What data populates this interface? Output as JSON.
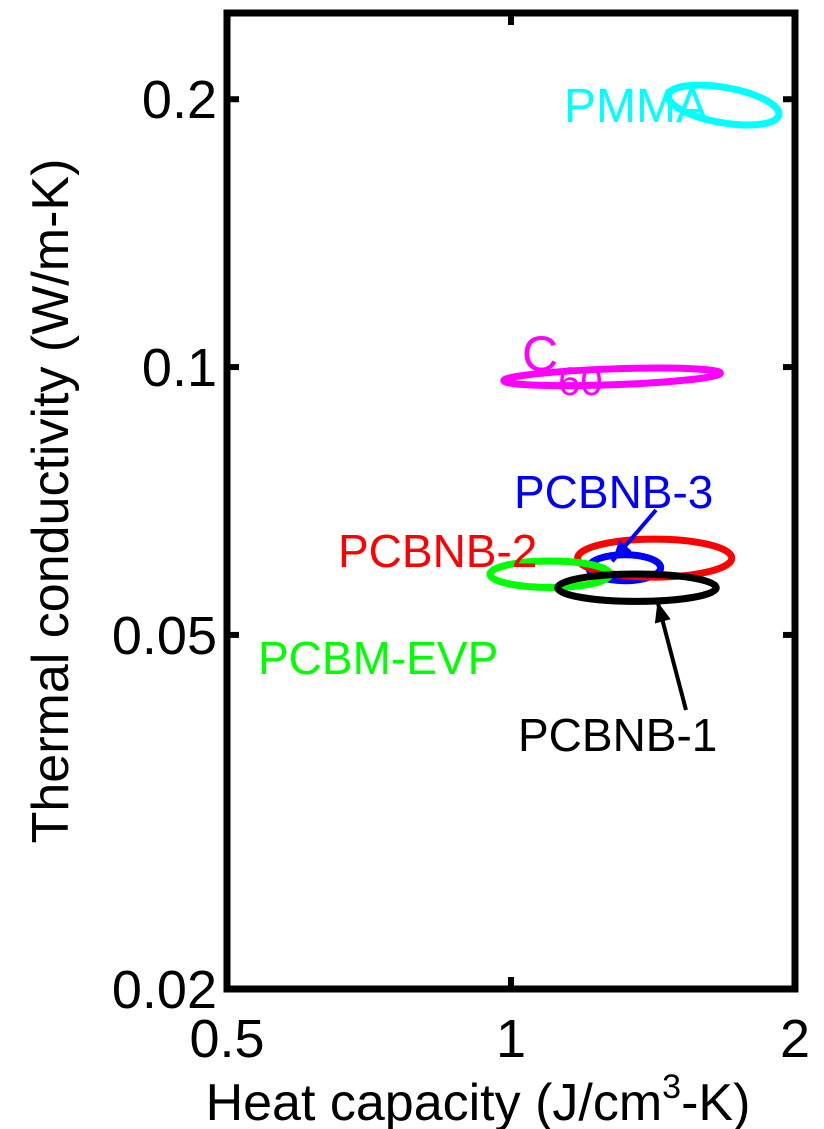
{
  "chart_data": {
    "type": "scatter",
    "title": "",
    "xlabel": {
      "main": "Heat capacity (J/cm",
      "sup": "3",
      "tail": "-K)"
    },
    "ylabel": "Thermal conductivity (W/m-K)",
    "xscale": "log",
    "yscale": "log",
    "xlim": [
      0.5,
      2
    ],
    "ylim": [
      0.02,
      0.25
    ],
    "xticks": [
      0.5,
      1,
      2
    ],
    "xtick_labels": [
      "0.5",
      "1",
      "2"
    ],
    "yticks": [
      0.02,
      0.05,
      0.1,
      0.2
    ],
    "ytick_labels": [
      "0.02",
      "0.05",
      "0.1",
      "0.2"
    ],
    "grid": false,
    "legend": "none",
    "series": [
      {
        "name": "PMMA",
        "color": "#00ffff",
        "center": [
          1.68,
          0.197
        ],
        "x_range": [
          1.46,
          1.92
        ],
        "y_range": [
          0.188,
          0.206
        ],
        "tilt": "down"
      },
      {
        "name": "C60",
        "label_main": "C",
        "label_sub": "60",
        "color": "#ff00ff",
        "center": [
          1.28,
          0.0975
        ],
        "x_range": [
          0.99,
          1.68
        ],
        "y_range": [
          0.0955,
          0.0995
        ],
        "tilt": "up"
      },
      {
        "name": "PCBNB-3",
        "color": "#0000ff",
        "center": [
          1.32,
          0.0595
        ],
        "x_range": [
          1.2,
          1.43
        ],
        "y_range": [
          0.0575,
          0.0615
        ],
        "tilt": "none"
      },
      {
        "name": "PCBNB-2",
        "color": "#ff0000",
        "center": [
          1.42,
          0.061
        ],
        "x_range": [
          1.16,
          1.69
        ],
        "y_range": [
          0.058,
          0.064
        ],
        "tilt": "none"
      },
      {
        "name": "PCBM-EVP",
        "color": "#00ff00",
        "center": [
          1.1,
          0.0585
        ],
        "x_range": [
          0.94,
          1.26
        ],
        "y_range": [
          0.0565,
          0.0605
        ],
        "tilt": "none"
      },
      {
        "name": "PCBNB-1",
        "color": "#000000",
        "center": [
          1.36,
          0.0565
        ],
        "x_range": [
          1.1,
          1.62
        ],
        "y_range": [
          0.0545,
          0.0585
        ],
        "tilt": "none"
      }
    ],
    "annotations": [
      {
        "text": "PMMA",
        "color": "#00ffff"
      },
      {
        "text_main": "C",
        "text_sub": "60",
        "color": "#ff00ff"
      },
      {
        "text": "PCBNB-3",
        "color": "#0000ff",
        "arrow_to": [
          1.28,
          0.0605
        ]
      },
      {
        "text": "PCBNB-2",
        "color": "#ff0000"
      },
      {
        "text": "PCBM-EVP",
        "color": "#00ff00"
      },
      {
        "text": "PCBNB-1",
        "color": "#000000",
        "arrow_to": [
          1.43,
          0.0545
        ]
      }
    ]
  }
}
